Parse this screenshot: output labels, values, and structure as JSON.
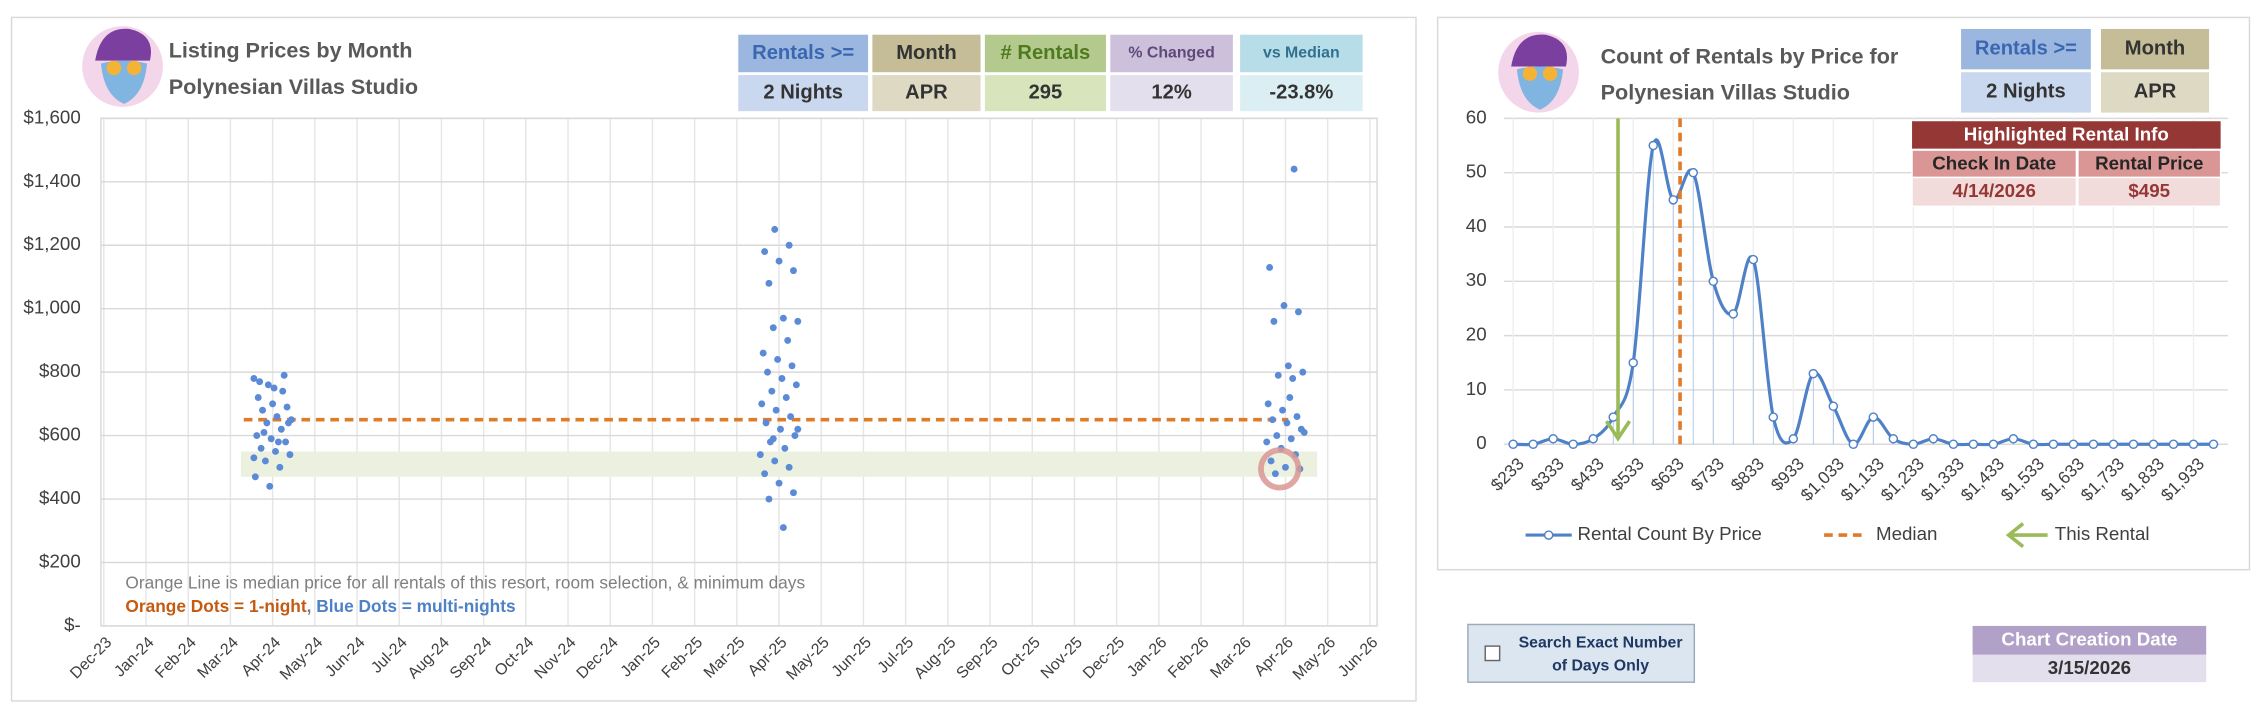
{
  "header": {
    "left_title": [
      "Listing Prices by Month",
      "Polynesian Villas Studio"
    ],
    "right_title": [
      "Count of Rentals by Price for",
      "Polynesian Villas Studio"
    ]
  },
  "left_table": {
    "headers": [
      "Rentals >=",
      "Month",
      "# Rentals",
      "% Changed",
      "vs Median"
    ],
    "values": [
      "2 Nights",
      "APR",
      "295",
      "12%",
      "-23.8%"
    ]
  },
  "right_table": {
    "headers": [
      "Rentals >=",
      "Month"
    ],
    "values": [
      "2 Nights",
      "APR"
    ]
  },
  "highlighted_rental": {
    "title": "Highlighted Rental Info",
    "headers": [
      "Check In Date",
      "Rental Price"
    ],
    "values": [
      "4/14/2026",
      "$495"
    ]
  },
  "search_option": {
    "label": [
      "Search Exact Number",
      "of Days Only"
    ]
  },
  "creation_date": {
    "label": "Chart Creation Date",
    "value": "3/15/2026"
  },
  "chart_data": [
    {
      "type": "scatter",
      "ylim": [
        0,
        1600
      ],
      "yticks": [
        {
          "value": 0,
          "label": "$-"
        },
        {
          "value": 200,
          "label": "$200"
        },
        {
          "value": 400,
          "label": "$400"
        },
        {
          "value": 600,
          "label": "$600"
        },
        {
          "value": 800,
          "label": "$800"
        },
        {
          "value": 1000,
          "label": "$1,000"
        },
        {
          "value": 1200,
          "label": "$1,200"
        },
        {
          "value": 1400,
          "label": "$1,400"
        },
        {
          "value": 1600,
          "label": "$1,600"
        }
      ],
      "xlim": [
        "Dec-23",
        "Jun-26"
      ],
      "xticks": [
        "Dec-23",
        "Jan-24",
        "Feb-24",
        "Mar-24",
        "Apr-24",
        "May-24",
        "Jun-24",
        "Jul-24",
        "Aug-24",
        "Sep-24",
        "Oct-24",
        "Nov-24",
        "Dec-24",
        "Jan-25",
        "Feb-25",
        "Mar-25",
        "Apr-25",
        "May-25",
        "Jun-25",
        "Jul-25",
        "Aug-25",
        "Sep-25",
        "Oct-25",
        "Nov-25",
        "Dec-25",
        "Jan-26",
        "Feb-26",
        "Mar-26",
        "Apr-26",
        "May-26",
        "Jun-26"
      ],
      "grid": true,
      "median": 650,
      "median_color": "#e07b2a",
      "price_band": [
        470,
        550
      ],
      "highlight": {
        "x": "Apr-26",
        "y": 495
      },
      "series": [
        {
          "color": "#5b8bd6",
          "x": [
            "Apr-24",
            "Apr-24",
            "Apr-24",
            "Apr-24",
            "Apr-24",
            "Apr-24",
            "Apr-24",
            "Apr-24",
            "Apr-24",
            "Apr-24",
            "Apr-24",
            "Apr-24",
            "Apr-24",
            "Apr-24",
            "Apr-24",
            "Apr-24",
            "Apr-24",
            "Apr-24",
            "Apr-24",
            "Apr-24",
            "Apr-24",
            "Apr-24",
            "Apr-24",
            "Apr-24",
            "Apr-24",
            "Apr-24",
            "Apr-24",
            "Apr-24",
            "Apr-25",
            "Apr-25",
            "Apr-25",
            "Apr-25",
            "Apr-25",
            "Apr-25",
            "Apr-25",
            "Apr-25",
            "Apr-25",
            "Apr-25",
            "Apr-25",
            "Apr-25",
            "Apr-25",
            "Apr-25",
            "Apr-25",
            "Apr-25",
            "Apr-25",
            "Apr-25",
            "Apr-25",
            "Apr-25",
            "Apr-25",
            "Apr-25",
            "Apr-25",
            "Apr-25",
            "Apr-25",
            "Apr-25",
            "Apr-25",
            "Apr-25",
            "Apr-25",
            "Apr-25",
            "Apr-25",
            "Apr-25",
            "Apr-25",
            "Apr-25",
            "Apr-25",
            "Apr-25",
            "Apr-26",
            "Apr-26",
            "Apr-26",
            "Apr-26",
            "Apr-26",
            "Apr-26",
            "Apr-26",
            "Apr-26",
            "Apr-26",
            "Apr-26",
            "Apr-26",
            "Apr-26",
            "Apr-26",
            "Apr-26",
            "Apr-26",
            "Apr-26",
            "Apr-26",
            "Apr-26",
            "Apr-26",
            "Apr-26",
            "Apr-26",
            "Apr-26",
            "Apr-26",
            "Apr-26",
            "Apr-26",
            "Apr-26"
          ],
          "y": [
            780,
            760,
            740,
            720,
            700,
            690,
            680,
            660,
            650,
            640,
            620,
            600,
            590,
            580,
            560,
            550,
            540,
            520,
            500,
            470,
            440,
            790,
            770,
            750,
            640,
            610,
            580,
            530,
            1250,
            1200,
            1180,
            1150,
            1120,
            1080,
            970,
            960,
            940,
            900,
            860,
            840,
            820,
            800,
            780,
            760,
            740,
            720,
            700,
            680,
            660,
            640,
            620,
            600,
            580,
            560,
            540,
            520,
            500,
            480,
            450,
            420,
            400,
            310,
            620,
            590,
            1440,
            1130,
            1010,
            990,
            960,
            820,
            800,
            790,
            780,
            700,
            680,
            660,
            650,
            640,
            620,
            600,
            590,
            580,
            560,
            540,
            520,
            500,
            495,
            480,
            720,
            610
          ]
        }
      ],
      "annotations": [
        "Orange Line is median price for all rentals of this resort, room selection, & minimum days",
        "Orange Dots = 1-night",
        ", ",
        "Blue Dots = multi-nights"
      ]
    },
    {
      "type": "line",
      "ylim": [
        0,
        60
      ],
      "yticks": [
        0,
        10,
        20,
        30,
        40,
        50,
        60
      ],
      "xlim": [
        210,
        1990
      ],
      "xticks": [
        {
          "value": 233,
          "label": "$233"
        },
        {
          "value": 333,
          "label": "$333"
        },
        {
          "value": 433,
          "label": "$433"
        },
        {
          "value": 533,
          "label": "$533"
        },
        {
          "value": 633,
          "label": "$633"
        },
        {
          "value": 733,
          "label": "$733"
        },
        {
          "value": 833,
          "label": "$833"
        },
        {
          "value": 933,
          "label": "$933"
        },
        {
          "value": 1033,
          "label": "$1,033"
        },
        {
          "value": 1133,
          "label": "$1,133"
        },
        {
          "value": 1233,
          "label": "$1,233"
        },
        {
          "value": 1333,
          "label": "$1,333"
        },
        {
          "value": 1433,
          "label": "$1,433"
        },
        {
          "value": 1533,
          "label": "$1,533"
        },
        {
          "value": 1633,
          "label": "$1,633"
        },
        {
          "value": 1733,
          "label": "$1,733"
        },
        {
          "value": 1833,
          "label": "$1,833"
        },
        {
          "value": 1933,
          "label": "$1,933"
        }
      ],
      "grid": true,
      "x": [
        233,
        283,
        333,
        383,
        433,
        483,
        533,
        583,
        633,
        683,
        733,
        783,
        833,
        883,
        933,
        983,
        1033,
        1083,
        1133,
        1183,
        1233,
        1283,
        1333,
        1383,
        1433,
        1483,
        1533,
        1583,
        1633,
        1683,
        1733,
        1783,
        1833,
        1883,
        1933,
        1983
      ],
      "series": [
        {
          "name": "Rental Count By Price",
          "color": "#4f81c7",
          "values": [
            0,
            0,
            1,
            0,
            1,
            5,
            15,
            55,
            45,
            50,
            30,
            24,
            34,
            5,
            1,
            13,
            7,
            0,
            5,
            1,
            0,
            1,
            0,
            0,
            0,
            1,
            0,
            0,
            0,
            0,
            0,
            0,
            0,
            0,
            0,
            0
          ]
        }
      ],
      "median": 650,
      "median_name": "Median",
      "median_color": "#e07b2a",
      "this_rental": 495,
      "this_rental_name": "This Rental",
      "this_rental_color": "#9bbb59"
    }
  ]
}
